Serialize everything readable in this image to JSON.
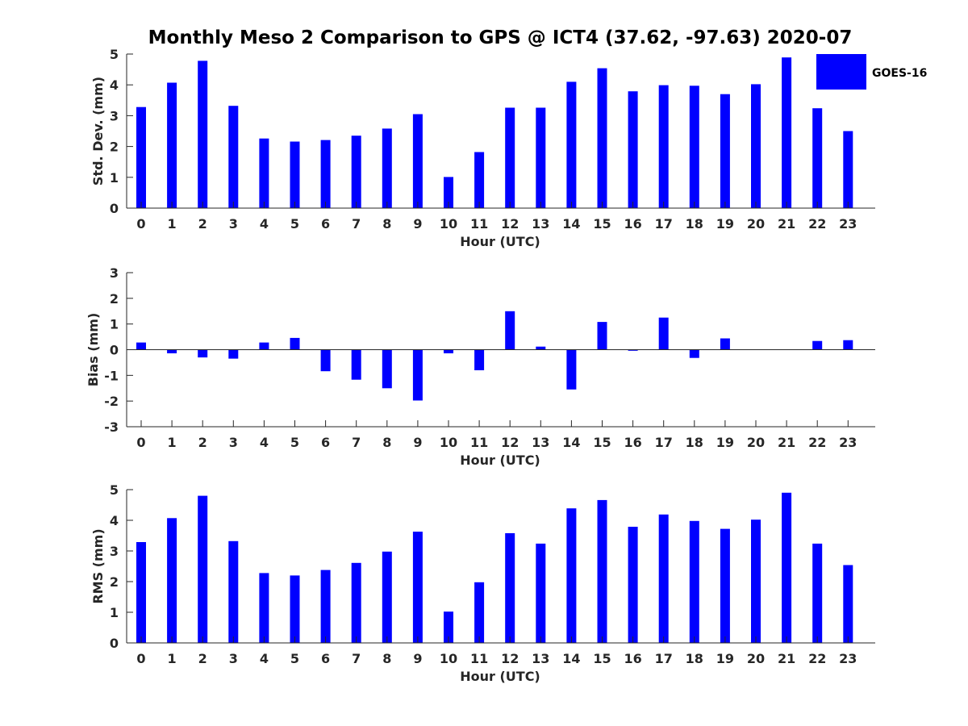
{
  "title": "Monthly Meso 2 Comparison to GPS @ ICT4 (37.62, -97.63) 2020-07",
  "legend": {
    "label": "GOES-16",
    "placement": "top-right",
    "color": "#0000ff"
  },
  "colors": {
    "bar": "#0000ff",
    "axis": "#262626",
    "background": "#ffffff"
  },
  "chart_data": [
    {
      "type": "bar",
      "xlabel": "Hour (UTC)",
      "ylabel": "Std. Dev. (mm)",
      "ylim": [
        0,
        5
      ],
      "yticks": [
        "0",
        "1",
        "2",
        "3",
        "4",
        "5"
      ],
      "categories": [
        "0",
        "1",
        "2",
        "3",
        "4",
        "5",
        "6",
        "7",
        "8",
        "9",
        "10",
        "11",
        "12",
        "13",
        "14",
        "15",
        "16",
        "17",
        "18",
        "19",
        "20",
        "21",
        "22",
        "23"
      ],
      "series": [
        {
          "name": "GOES-16",
          "values": [
            3.28,
            4.07,
            4.78,
            3.32,
            2.26,
            2.16,
            2.21,
            2.35,
            2.58,
            3.05,
            1.01,
            1.82,
            3.26,
            3.26,
            4.1,
            4.54,
            3.79,
            3.99,
            3.97,
            3.7,
            4.02,
            4.89,
            3.24,
            2.5
          ]
        }
      ],
      "grid": false
    },
    {
      "type": "bar",
      "xlabel": "Hour (UTC)",
      "ylabel": "Bias (mm)",
      "ylim": [
        -3,
        3
      ],
      "yticks": [
        "-3",
        "-2",
        "-1",
        "0",
        "1",
        "2",
        "3"
      ],
      "categories": [
        "0",
        "1",
        "2",
        "3",
        "4",
        "5",
        "6",
        "7",
        "8",
        "9",
        "10",
        "11",
        "12",
        "13",
        "14",
        "15",
        "16",
        "17",
        "18",
        "19",
        "20",
        "21",
        "22",
        "23"
      ],
      "series": [
        {
          "name": "GOES-16",
          "values": [
            0.28,
            -0.14,
            -0.3,
            -0.35,
            0.28,
            0.46,
            -0.84,
            -1.17,
            -1.5,
            -1.98,
            -0.14,
            -0.8,
            1.5,
            0.12,
            -1.55,
            1.08,
            -0.04,
            1.25,
            -0.32,
            0.44,
            0.0,
            0.0,
            0.34,
            0.37
          ]
        }
      ],
      "grid": false
    },
    {
      "type": "bar",
      "xlabel": "Hour (UTC)",
      "ylabel": "RMS (mm)",
      "ylim": [
        0,
        5
      ],
      "yticks": [
        "0",
        "1",
        "2",
        "3",
        "4",
        "5"
      ],
      "categories": [
        "0",
        "1",
        "2",
        "3",
        "4",
        "5",
        "6",
        "7",
        "8",
        "9",
        "10",
        "11",
        "12",
        "13",
        "14",
        "15",
        "16",
        "17",
        "18",
        "19",
        "20",
        "21",
        "22",
        "23"
      ],
      "series": [
        {
          "name": "GOES-16",
          "values": [
            3.29,
            4.07,
            4.8,
            3.32,
            2.28,
            2.2,
            2.38,
            2.61,
            2.98,
            3.63,
            1.02,
            1.98,
            3.58,
            3.24,
            4.39,
            4.66,
            3.79,
            4.19,
            3.98,
            3.72,
            4.02,
            4.9,
            3.24,
            2.54
          ]
        }
      ],
      "grid": false
    }
  ]
}
